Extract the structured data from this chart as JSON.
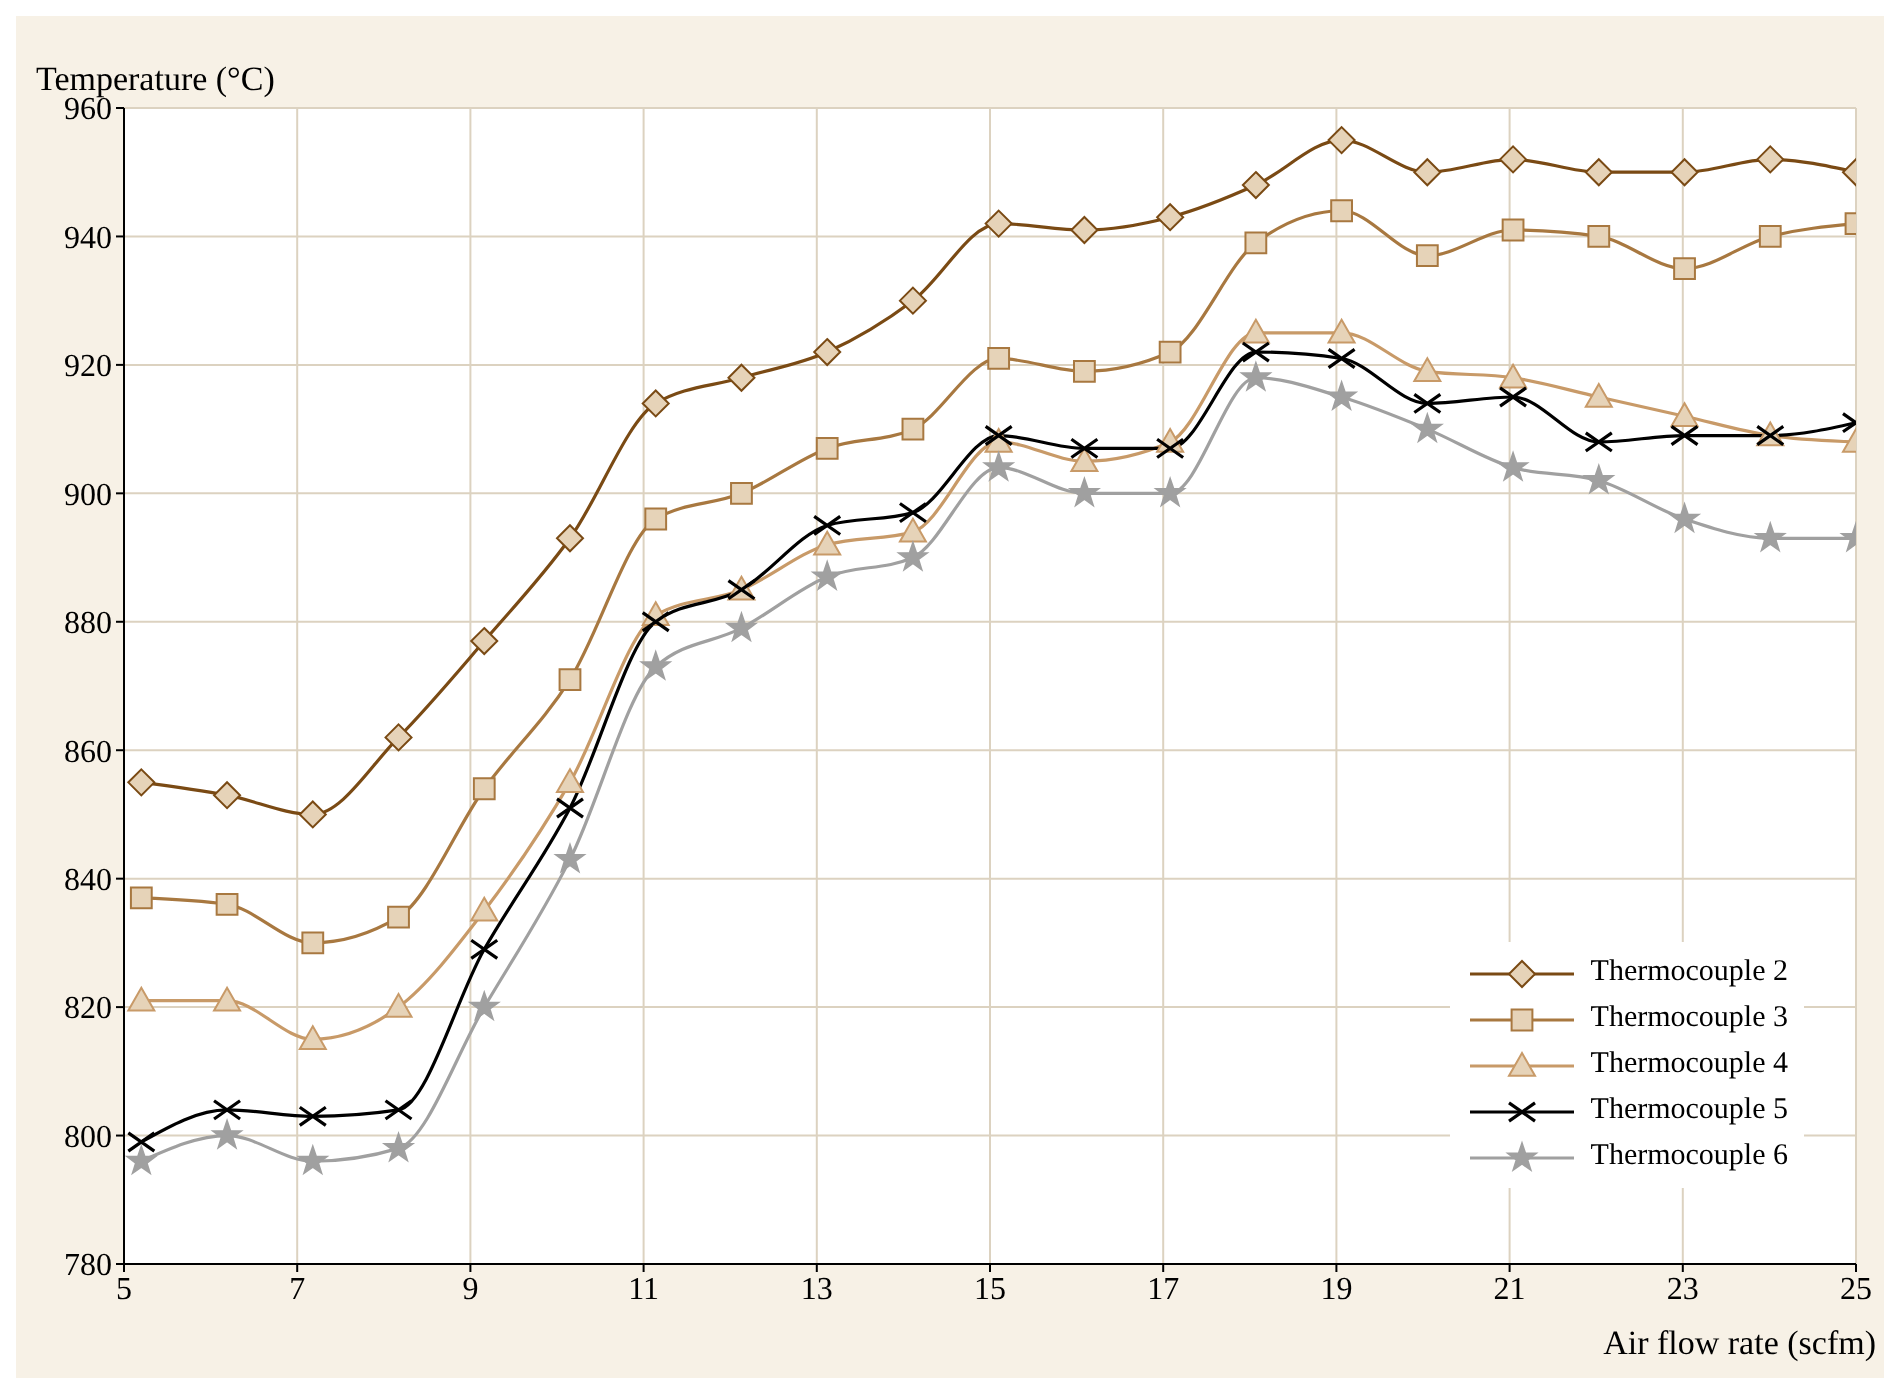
{
  "chart_data": {
    "type": "line",
    "xlabel": "Air flow rate (scfm)",
    "ylabel": "Temperature (°C)",
    "x": [
      5.2,
      6.19,
      7.18,
      8.17,
      9.16,
      10.15,
      11.14,
      12.13,
      13.12,
      14.11,
      15.1,
      16.09,
      17.08,
      18.07,
      19.06,
      20.05,
      21.04,
      22.03,
      23.02,
      24.01,
      25.0
    ],
    "xlim": [
      5,
      25
    ],
    "xticks": [
      5,
      7,
      9,
      11,
      13,
      15,
      17,
      19,
      21,
      23,
      25
    ],
    "ylim": [
      780,
      960
    ],
    "yticks": [
      780,
      800,
      820,
      840,
      860,
      880,
      900,
      920,
      940,
      960
    ],
    "grid": true,
    "legend": "bottom right",
    "line_style": "solid",
    "series": [
      {
        "name": "Thermocouple 2",
        "color": "#7a4a14",
        "marker": "diamond",
        "values": [
          855,
          853,
          850,
          862,
          877,
          893,
          914,
          918,
          922,
          930,
          942,
          941,
          943,
          948,
          955,
          950,
          952,
          950,
          950,
          952,
          950
        ]
      },
      {
        "name": "Thermocouple 3",
        "color": "#a87840",
        "marker": "square",
        "values": [
          837,
          836,
          830,
          834,
          854,
          871,
          896,
          900,
          907,
          910,
          921,
          919,
          922,
          939,
          944,
          937,
          941,
          940,
          935,
          940,
          942
        ]
      },
      {
        "name": "Thermocouple 4",
        "color": "#c89a68",
        "marker": "triangle",
        "values": [
          821,
          821,
          815,
          820,
          835,
          855,
          881,
          885,
          892,
          894,
          908,
          905,
          908,
          925,
          925,
          919,
          918,
          915,
          912,
          909,
          908
        ]
      },
      {
        "name": "Thermocouple 5",
        "color": "#000000",
        "marker": "cross",
        "values": [
          799,
          804,
          803,
          804,
          829,
          851,
          880,
          885,
          895,
          897,
          909,
          907,
          907,
          922,
          921,
          914,
          915,
          908,
          909,
          909,
          911
        ]
      },
      {
        "name": "Thermocouple 6",
        "color": "#a0a0a0",
        "marker": "star",
        "values": [
          796,
          800,
          796,
          798,
          820,
          843,
          873,
          879,
          887,
          890,
          904,
          900,
          900,
          918,
          915,
          910,
          904,
          902,
          896,
          893,
          893
        ]
      }
    ]
  }
}
